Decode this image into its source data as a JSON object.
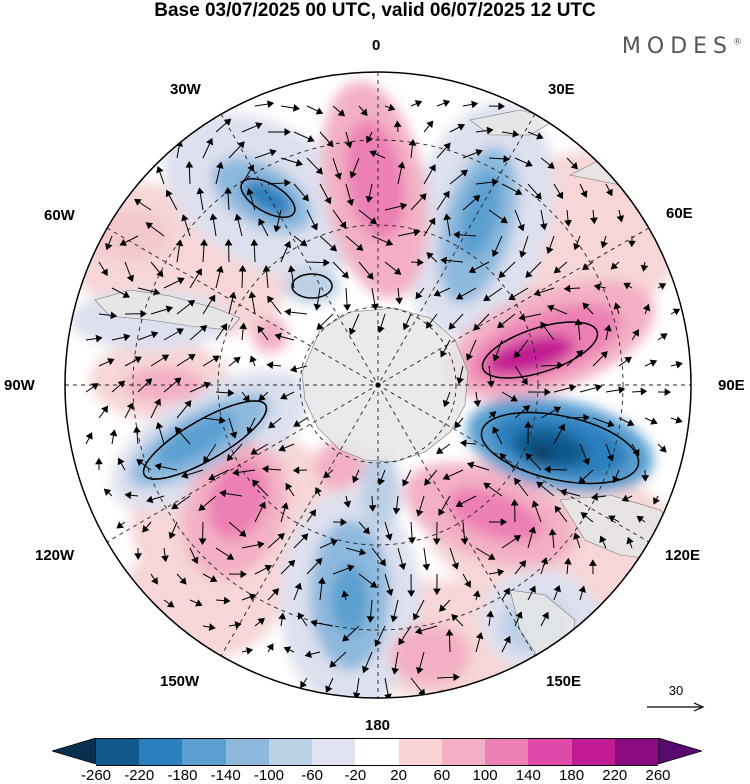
{
  "title": "Base 03/07/2025 00 UTC, valid 06/07/2025 12 UTC",
  "brand": "MODES",
  "brand_mark": "®",
  "map": {
    "projection": "polar stereographic (south pole)",
    "longitude_labels": {
      "lon_0": "0",
      "lon_30e": "30E",
      "lon_60e": "60E",
      "lon_90e": "90E",
      "lon_120e": "120E",
      "lon_150e": "150E",
      "lon_180": "180",
      "lon_150w": "150W",
      "lon_120w": "120W",
      "lon_90w": "90W",
      "lon_60w": "60W",
      "lon_30w": "30W"
    },
    "reference_vector": "30",
    "land_color": "#e6e6e6",
    "graticule_style": "dashed"
  },
  "colorbar": {
    "ticks": [
      "-260",
      "-220",
      "-180",
      "-140",
      "-100",
      "-60",
      "-20",
      "20",
      "60",
      "100",
      "140",
      "180",
      "220",
      "260"
    ],
    "colors": [
      "#08304f",
      "#10598c",
      "#2a7fbd",
      "#5a9fd0",
      "#8db9de",
      "#bcd0e6",
      "#e0e2ef",
      "#ffffff",
      "#f8d3d3",
      "#f3b0c4",
      "#ec7fb4",
      "#df4aa8",
      "#c21c94",
      "#8c0a82",
      "#560a6e"
    ]
  }
}
